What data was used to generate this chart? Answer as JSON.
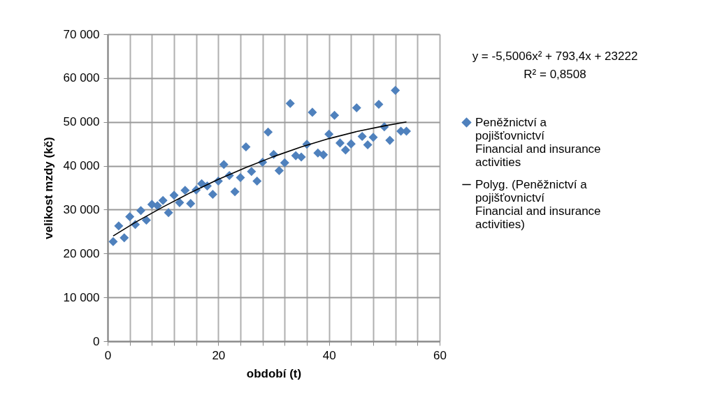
{
  "chart_data": {
    "type": "scatter",
    "xlabel": "období (t)",
    "ylabel": "velikost mzdy (kč)",
    "annotations": [
      "y = -5,5006x² + 793,4x + 23222",
      "R² = 0,8508"
    ],
    "series": [
      {
        "name": "Peněžnictví a pojišťovnictví Financial and insurance activities",
        "color": "#4f81bd",
        "marker": "diamond",
        "x": [
          1,
          2,
          3,
          4,
          5,
          6,
          7,
          8,
          9,
          10,
          11,
          12,
          13,
          14,
          15,
          16,
          17,
          18,
          19,
          20,
          21,
          22,
          23,
          24,
          25,
          26,
          27,
          28,
          29,
          30,
          31,
          32,
          33,
          34,
          35,
          36,
          37,
          38,
          39,
          40,
          41,
          42,
          43,
          44,
          45,
          46,
          47,
          48,
          49,
          50,
          51,
          52,
          53,
          54
        ],
        "values": [
          22700,
          26300,
          23600,
          28400,
          26600,
          29800,
          27600,
          31200,
          30900,
          32100,
          29300,
          33300,
          31600,
          34400,
          31400,
          34500,
          35900,
          35400,
          33500,
          36500,
          40300,
          37800,
          34100,
          37300,
          44300,
          38700,
          36500,
          40800,
          47700,
          42600,
          38900,
          40700,
          54200,
          42300,
          42000,
          44900,
          52200,
          42900,
          42500,
          47200,
          51500,
          45200,
          43600,
          45000,
          53200,
          46700,
          44800,
          46500,
          54000,
          48900,
          45800,
          57200,
          47900,
          47900
        ]
      },
      {
        "name": "Polyg. (Peněžnictví a pojišťovnictví Financial and insurance activities)",
        "color": "#000000",
        "type": "line",
        "x": [
          1,
          5,
          10,
          15,
          20,
          25,
          30,
          35,
          40,
          45,
          50,
          54
        ],
        "values": [
          24000,
          27100,
          30600,
          33900,
          36900,
          39600,
          42100,
          44300,
          46200,
          47800,
          49100,
          50000
        ]
      }
    ],
    "xlim": [
      0,
      60
    ],
    "xticks": [
      0,
      {
        "value": 4,
        "label": null
      },
      {
        "value": 8,
        "label": null
      },
      {
        "value": 12,
        "label": null
      },
      {
        "value": 16,
        "label": null
      },
      20,
      {
        "value": 24,
        "label": null
      },
      {
        "value": 28,
        "label": null
      },
      {
        "value": 32,
        "label": null
      },
      {
        "value": 36,
        "label": null
      },
      40,
      {
        "value": 44,
        "label": null
      },
      {
        "value": 48,
        "label": null
      },
      {
        "value": 52,
        "label": null
      },
      {
        "value": 56,
        "label": null
      },
      60
    ],
    "ylim": [
      0,
      70000
    ],
    "yticks": [
      0,
      {
        "value": 10000,
        "label": "10 000"
      },
      {
        "value": 20000,
        "label": "20 000"
      },
      {
        "value": 30000,
        "label": "30 000"
      },
      {
        "value": 40000,
        "label": "40 000"
      },
      {
        "value": 50000,
        "label": "50 000"
      },
      {
        "value": 60000,
        "label": "60 000"
      },
      {
        "value": 70000,
        "label": "70 000"
      }
    ],
    "grid": true,
    "legend": "right",
    "line_style": "solid"
  }
}
